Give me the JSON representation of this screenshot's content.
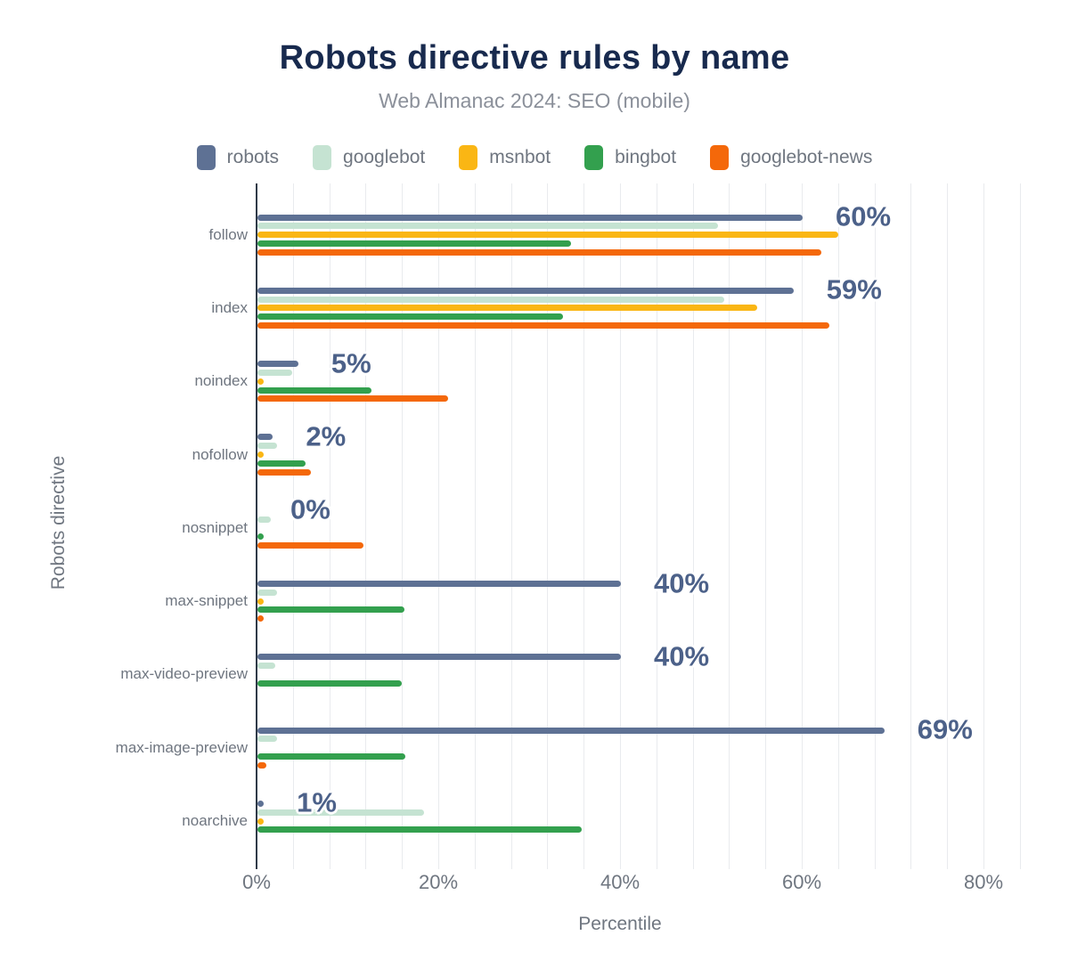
{
  "title": "Robots directive rules by name",
  "subtitle": "Web Almanac 2024: SEO (mobile)",
  "chart_data": {
    "type": "bar",
    "orientation": "horizontal",
    "title": "Robots directive rules by name",
    "subtitle": "Web Almanac 2024: SEO (mobile)",
    "xlabel": "Percentile",
    "ylabel": "Robots directive",
    "xlim": [
      0,
      84
    ],
    "grid": true,
    "grid_step_pct": 4,
    "legend_position": "top",
    "x_ticks": [
      {
        "value": 0,
        "label": "0%"
      },
      {
        "value": 20,
        "label": "20%"
      },
      {
        "value": 40,
        "label": "40%"
      },
      {
        "value": 60,
        "label": "60%"
      },
      {
        "value": 80,
        "label": "80%"
      }
    ],
    "categories": [
      "follow",
      "index",
      "noindex",
      "nofollow",
      "nosnippet",
      "max-snippet",
      "max-video-preview",
      "max-image-preview",
      "noarchive"
    ],
    "series": [
      {
        "name": "robots",
        "color": "#5e7194",
        "values": [
          60,
          59,
          4.5,
          1.7,
          0,
          40,
          40,
          69,
          0.7
        ]
      },
      {
        "name": "googlebot",
        "color": "#c5e3d2",
        "values": [
          50.7,
          51.4,
          3.8,
          2.2,
          1.5,
          2.2,
          2.0,
          2.2,
          18.3
        ]
      },
      {
        "name": "msnbot",
        "color": "#fab614",
        "values": [
          63.9,
          55.0,
          0.4,
          0.4,
          0,
          0.3,
          0,
          0,
          0.4
        ]
      },
      {
        "name": "bingbot",
        "color": "#33a04e",
        "values": [
          34.5,
          33.6,
          12.5,
          5.3,
          0.5,
          16.2,
          15.9,
          16.3,
          35.7
        ]
      },
      {
        "name": "googlebot-news",
        "color": "#f4680a",
        "values": [
          62.1,
          62.9,
          21.0,
          5.9,
          11.7,
          0.3,
          0,
          1.0,
          0
        ]
      }
    ],
    "value_labels": [
      "60%",
      "59%",
      "5%",
      "2%",
      "0%",
      "40%",
      "40%",
      "69%",
      "1%"
    ],
    "value_label_series": "robots"
  },
  "colors": {
    "title": "#182a4e",
    "subtitle": "#8b909a",
    "axis_text": "#6f7680",
    "data_label": "#4c6189",
    "axis_line": "#2f3a48",
    "gridline": "#e9ebee"
  }
}
